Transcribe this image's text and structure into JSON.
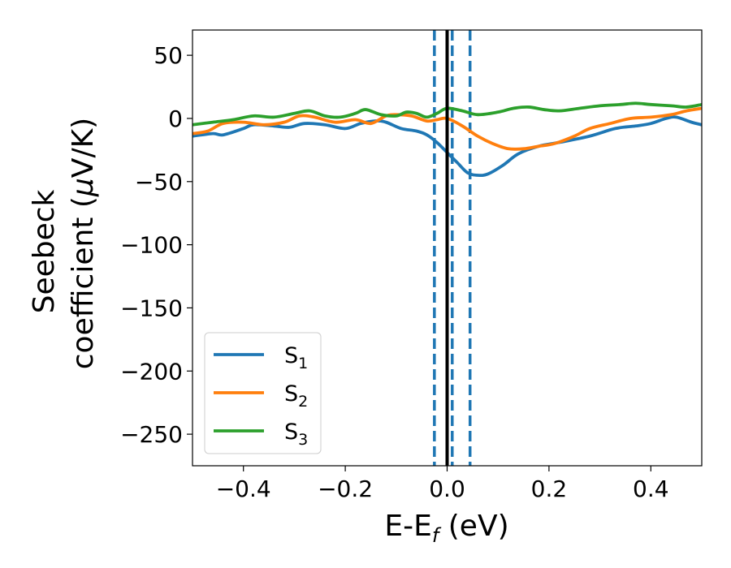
{
  "chart_data": {
    "type": "line",
    "xlabel_main": "E-E",
    "xlabel_sub": "f",
    "xlabel_unit": " (eV)",
    "ylabel_line1": "Seebeck",
    "ylabel_line2_text": "coefficient  (",
    "ylabel_mu": "μ",
    "ylabel_line2_end": "V/K)",
    "xlim": [
      -0.5,
      0.5
    ],
    "ylim": [
      -275,
      70
    ],
    "xticks": [
      -0.4,
      -0.2,
      0.0,
      0.2,
      0.4
    ],
    "xtick_labels": [
      "−0.4",
      "−0.2",
      "0.0",
      "0.2",
      "0.4"
    ],
    "yticks": [
      50,
      0,
      -50,
      -100,
      -150,
      -200,
      -250
    ],
    "ytick_labels": [
      "50",
      "0",
      "−50",
      "−100",
      "−150",
      "−200",
      "−250"
    ],
    "grid": false,
    "legend_position": "lower-left",
    "vlines": [
      {
        "x": -0.025,
        "style": "dashed",
        "color": "#1f77b4"
      },
      {
        "x": 0.01,
        "style": "dashed",
        "color": "#1f77b4"
      },
      {
        "x": 0.045,
        "style": "dashed",
        "color": "#1f77b4"
      },
      {
        "x": 0.0,
        "style": "solid",
        "color": "#000000"
      }
    ],
    "series": [
      {
        "name": "S",
        "sub": "1",
        "color": "#1f77b4",
        "x": [
          -0.5,
          -0.46,
          -0.44,
          -0.4,
          -0.38,
          -0.34,
          -0.31,
          -0.28,
          -0.24,
          -0.2,
          -0.17,
          -0.14,
          -0.12,
          -0.09,
          -0.06,
          -0.04,
          -0.02,
          0.0,
          0.02,
          0.04,
          0.06,
          0.08,
          0.11,
          0.14,
          0.18,
          0.22,
          0.28,
          0.33,
          0.37,
          0.4,
          0.43,
          0.45,
          0.48,
          0.5
        ],
        "y": [
          -14,
          -12,
          -13,
          -8,
          -5,
          -6,
          -7,
          -4,
          -5,
          -8,
          -4,
          -2,
          -3,
          -8,
          -10,
          -13,
          -19,
          -27,
          -35,
          -43,
          -45,
          -44,
          -37,
          -28,
          -22,
          -19,
          -14,
          -8,
          -6,
          -4,
          0,
          1,
          -3,
          -5
        ]
      },
      {
        "name": "S",
        "sub": "2",
        "color": "#ff7f0e",
        "x": [
          -0.5,
          -0.47,
          -0.44,
          -0.4,
          -0.36,
          -0.32,
          -0.29,
          -0.26,
          -0.22,
          -0.18,
          -0.15,
          -0.12,
          -0.1,
          -0.07,
          -0.04,
          -0.02,
          0.0,
          0.03,
          0.06,
          0.09,
          0.12,
          0.15,
          0.18,
          0.21,
          0.25,
          0.28,
          0.32,
          0.36,
          0.4,
          0.44,
          0.47,
          0.5
        ],
        "y": [
          -12,
          -10,
          -4,
          -3,
          -5,
          -3,
          2,
          1,
          -3,
          -1,
          -4,
          2,
          3,
          2,
          -2,
          -1,
          0,
          -6,
          -14,
          -20,
          -24,
          -24,
          -22,
          -20,
          -14,
          -8,
          -4,
          0,
          1,
          3,
          6,
          8
        ]
      },
      {
        "name": "S",
        "sub": "3",
        "color": "#2ca02c",
        "x": [
          -0.5,
          -0.46,
          -0.42,
          -0.38,
          -0.34,
          -0.3,
          -0.27,
          -0.24,
          -0.21,
          -0.18,
          -0.16,
          -0.13,
          -0.1,
          -0.08,
          -0.06,
          -0.04,
          -0.02,
          0.0,
          0.03,
          0.06,
          0.1,
          0.13,
          0.16,
          0.19,
          0.22,
          0.26,
          0.3,
          0.34,
          0.37,
          0.4,
          0.44,
          0.47,
          0.5
        ],
        "y": [
          -5,
          -3,
          -1,
          2,
          1,
          4,
          6,
          2,
          1,
          4,
          7,
          3,
          2,
          5,
          4,
          1,
          4,
          8,
          6,
          3,
          5,
          8,
          9,
          7,
          6,
          8,
          10,
          11,
          12,
          11,
          10,
          9,
          11
        ]
      }
    ]
  }
}
